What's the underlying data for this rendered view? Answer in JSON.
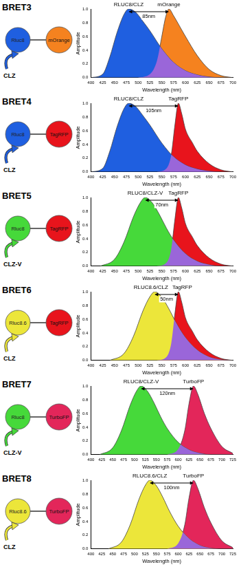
{
  "chart_data": [
    {
      "type": "line",
      "title": "BRET3",
      "diagram": {
        "donor": "Rluc8",
        "acceptor": "mOrange",
        "substrate": "CLZ"
      },
      "xlabel": "Wavelength (nm)",
      "ylabel": "Amplitude",
      "xlim": [
        400,
        700
      ],
      "xticks": [
        400,
        425,
        450,
        475,
        500,
        525,
        550,
        575,
        600,
        625,
        650,
        675,
        700
      ],
      "ylim": [
        0,
        1
      ],
      "yticks": [
        {
          "value": 0,
          "label": "0.0"
        },
        0.2,
        0.4,
        0.6,
        0.8,
        {
          "value": 1,
          "label": "1.0"
        }
      ],
      "grid": false,
      "series": [
        {
          "name": "RLUC8/CLZ",
          "color": "#1f5fe0",
          "x": [
            400,
            425,
            440,
            455,
            470,
            480,
            495,
            510,
            525,
            550,
            575,
            600,
            625,
            650,
            675,
            700
          ],
          "values": [
            0,
            0.05,
            0.3,
            0.65,
            0.92,
            1.0,
            0.95,
            0.82,
            0.68,
            0.42,
            0.22,
            0.1,
            0.04,
            0.01,
            0,
            0
          ]
        },
        {
          "name": "mOrange",
          "color": "#f5821f",
          "x": [
            500,
            525,
            540,
            550,
            558,
            565,
            575,
            590,
            600,
            625,
            650,
            675,
            700
          ],
          "values": [
            0,
            0.05,
            0.25,
            0.6,
            0.88,
            1.0,
            0.9,
            0.72,
            0.6,
            0.32,
            0.12,
            0.03,
            0
          ]
        }
      ],
      "annotations": [
        {
          "text": "85nm",
          "x": [
            480,
            565
          ]
        }
      ]
    },
    {
      "type": "line",
      "title": "BRET4",
      "diagram": {
        "donor": "Rluc8",
        "acceptor": "TagRFP",
        "substrate": "CLZ"
      },
      "xlabel": "Wavelength (nm)",
      "ylabel": "Amplitude",
      "xlim": [
        400,
        700
      ],
      "xticks": [
        400,
        425,
        450,
        475,
        500,
        525,
        550,
        575,
        600,
        625,
        650,
        675,
        700
      ],
      "ylim": [
        0,
        1
      ],
      "yticks": [
        {
          "value": 0,
          "label": "0.0"
        },
        0.2,
        0.4,
        0.6,
        0.8,
        {
          "value": 1,
          "label": "1.0"
        }
      ],
      "grid": false,
      "series": [
        {
          "name": "RLUC8/CLZ",
          "color": "#1f5fe0",
          "x": [
            400,
            425,
            440,
            455,
            470,
            480,
            495,
            510,
            525,
            550,
            575,
            600,
            625,
            650,
            675,
            700
          ],
          "values": [
            0,
            0.05,
            0.3,
            0.65,
            0.92,
            1.0,
            0.95,
            0.82,
            0.68,
            0.42,
            0.22,
            0.1,
            0.04,
            0.01,
            0,
            0
          ]
        },
        {
          "name": "TagRFP",
          "color": "#e8141c",
          "x": [
            540,
            560,
            570,
            578,
            585,
            592,
            600,
            615,
            625,
            650,
            675,
            700
          ],
          "values": [
            0,
            0.05,
            0.25,
            0.7,
            1.0,
            0.85,
            0.62,
            0.42,
            0.3,
            0.12,
            0.03,
            0
          ]
        }
      ],
      "annotations": [
        {
          "text": "105nm",
          "x": [
            480,
            585
          ]
        }
      ]
    },
    {
      "type": "line",
      "title": "BRET5",
      "diagram": {
        "donor": "Rluc8",
        "acceptor": "TagRFP",
        "substrate": "CLZ-V"
      },
      "xlabel": "Wavelength (nm)",
      "ylabel": "Amplitude",
      "xlim": [
        400,
        700
      ],
      "xticks": [
        400,
        425,
        450,
        475,
        500,
        525,
        550,
        575,
        600,
        625,
        650,
        675,
        700
      ],
      "ylim": [
        0,
        1
      ],
      "yticks": [
        {
          "value": 0,
          "label": "0.0"
        },
        0.2,
        0.4,
        0.6,
        0.8,
        {
          "value": 1,
          "label": "1.0"
        }
      ],
      "grid": false,
      "series": [
        {
          "name": "RLUC8/CLZ-V",
          "color": "#46d93a",
          "x": [
            420,
            450,
            470,
            490,
            505,
            515,
            530,
            545,
            560,
            575,
            600,
            625,
            650,
            675,
            700
          ],
          "values": [
            0,
            0.1,
            0.35,
            0.72,
            0.93,
            1.0,
            0.92,
            0.75,
            0.55,
            0.38,
            0.18,
            0.07,
            0.02,
            0,
            0
          ]
        },
        {
          "name": "TagRFP",
          "color": "#e8141c",
          "x": [
            540,
            560,
            570,
            578,
            585,
            592,
            600,
            615,
            625,
            650,
            675,
            700
          ],
          "values": [
            0,
            0.05,
            0.25,
            0.7,
            1.0,
            0.85,
            0.62,
            0.42,
            0.3,
            0.12,
            0.03,
            0
          ]
        }
      ],
      "annotations": [
        {
          "text": "70nm",
          "x": [
            515,
            585
          ]
        }
      ]
    },
    {
      "type": "line",
      "title": "BRET6",
      "diagram": {
        "donor": "Rluc8.6",
        "acceptor": "TagRFP",
        "substrate": "CLZ"
      },
      "xlabel": "Wavelength (nm)",
      "ylabel": "Amplitude",
      "xlim": [
        400,
        700
      ],
      "xticks": [
        400,
        425,
        450,
        475,
        500,
        525,
        550,
        575,
        600,
        625,
        650,
        675,
        700
      ],
      "ylim": [
        0,
        1
      ],
      "yticks": [
        {
          "value": 0,
          "label": "0.0"
        },
        0.2,
        0.4,
        0.6,
        0.8,
        {
          "value": 1,
          "label": "1.0"
        }
      ],
      "grid": false,
      "series": [
        {
          "name": "RLUC8.6/CLZ",
          "color": "#ece63a",
          "x": [
            440,
            470,
            490,
            510,
            525,
            535,
            550,
            565,
            580,
            600,
            625,
            650,
            675,
            700
          ],
          "values": [
            0,
            0.1,
            0.35,
            0.72,
            0.93,
            1.0,
            0.92,
            0.75,
            0.55,
            0.33,
            0.15,
            0.05,
            0.01,
            0
          ]
        },
        {
          "name": "TagRFP",
          "color": "#e8141c",
          "x": [
            540,
            560,
            570,
            578,
            585,
            592,
            600,
            615,
            625,
            650,
            675,
            700
          ],
          "values": [
            0,
            0.05,
            0.25,
            0.7,
            1.0,
            0.85,
            0.62,
            0.42,
            0.3,
            0.12,
            0.03,
            0
          ]
        }
      ],
      "annotations": [
        {
          "text": "50nm",
          "x": [
            535,
            585
          ]
        }
      ]
    },
    {
      "type": "line",
      "title": "BRET7",
      "diagram": {
        "donor": "Rluc8",
        "acceptor": "TurboFP",
        "substrate": "CLZ-V"
      },
      "xlabel": "Wavelength (nm)",
      "ylabel": "Amplitude",
      "xlim": [
        400,
        725
      ],
      "xticks": [
        400,
        425,
        450,
        475,
        500,
        525,
        550,
        575,
        600,
        625,
        650,
        675,
        700,
        725
      ],
      "ylim": [
        0,
        1
      ],
      "yticks": [
        {
          "value": 0,
          "label": "0.0"
        },
        0.2,
        0.4,
        0.6,
        0.8,
        {
          "value": 1,
          "label": "1.0"
        }
      ],
      "grid": false,
      "series": [
        {
          "name": "RLUC8/CLZ-V",
          "color": "#46d93a",
          "x": [
            420,
            450,
            470,
            490,
            505,
            515,
            530,
            545,
            560,
            575,
            600,
            625,
            650,
            675,
            700,
            725
          ],
          "values": [
            0,
            0.1,
            0.35,
            0.72,
            0.93,
            1.0,
            0.92,
            0.75,
            0.55,
            0.38,
            0.18,
            0.07,
            0.02,
            0,
            0,
            0
          ]
        },
        {
          "name": "TurboFP",
          "color": "#e3265a",
          "x": [
            575,
            600,
            615,
            625,
            635,
            645,
            660,
            675,
            700,
            725
          ],
          "values": [
            0,
            0.08,
            0.35,
            0.75,
            1.0,
            0.88,
            0.6,
            0.38,
            0.12,
            0.02
          ]
        }
      ],
      "annotations": [
        {
          "text": "120nm",
          "x": [
            515,
            635
          ]
        }
      ]
    },
    {
      "type": "line",
      "title": "BRET8",
      "diagram": {
        "donor": "Rluc8.6",
        "acceptor": "TurboFP",
        "substrate": "CLZ"
      },
      "xlabel": "Wavelength (nm)",
      "ylabel": "Amplitude",
      "xlim": [
        400,
        725
      ],
      "xticks": [
        400,
        425,
        450,
        475,
        500,
        525,
        550,
        575,
        600,
        625,
        650,
        675,
        700,
        725
      ],
      "ylim": [
        0,
        1
      ],
      "yticks": [
        {
          "value": 0,
          "label": "0.0"
        },
        0.2,
        0.4,
        0.6,
        0.8,
        {
          "value": 1,
          "label": "1.0"
        }
      ],
      "grid": false,
      "series": [
        {
          "name": "RLUC8.6/CLZ",
          "color": "#ece63a",
          "x": [
            440,
            470,
            490,
            510,
            525,
            535,
            550,
            565,
            580,
            600,
            625,
            650,
            675,
            700,
            725
          ],
          "values": [
            0,
            0.1,
            0.35,
            0.72,
            0.93,
            1.0,
            0.92,
            0.75,
            0.55,
            0.33,
            0.15,
            0.05,
            0.01,
            0,
            0
          ]
        },
        {
          "name": "TurboFP",
          "color": "#e3265a",
          "x": [
            575,
            600,
            615,
            625,
            635,
            645,
            660,
            675,
            700,
            725
          ],
          "values": [
            0,
            0.08,
            0.35,
            0.75,
            1.0,
            0.88,
            0.6,
            0.38,
            0.12,
            0.02
          ]
        }
      ],
      "annotations": [
        {
          "text": "100nm",
          "x": [
            535,
            635
          ]
        }
      ]
    }
  ]
}
